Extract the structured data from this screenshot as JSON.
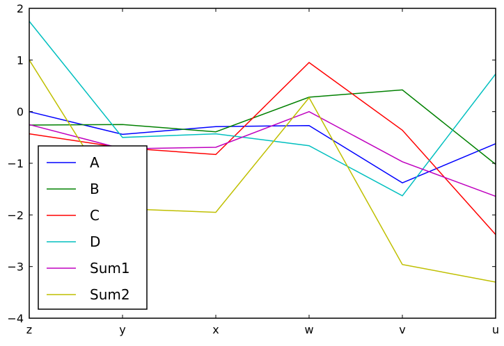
{
  "chart_data": {
    "type": "line",
    "title": "",
    "xlabel": "",
    "ylabel": "",
    "categories": [
      "z",
      "y",
      "x",
      "w",
      "v",
      "u"
    ],
    "ylim": [
      -4,
      2
    ],
    "yticks": [
      {
        "value": 2,
        "label": "2"
      },
      {
        "value": 1,
        "label": "1"
      },
      {
        "value": 0,
        "label": "0"
      },
      {
        "value": -1,
        "label": "−1"
      },
      {
        "value": -2,
        "label": "−2"
      },
      {
        "value": -3,
        "label": "−3"
      },
      {
        "value": -4,
        "label": "−4"
      }
    ],
    "grid": false,
    "legend_position": "lower-left",
    "series": [
      {
        "name": "A",
        "color": "#0000ff",
        "values": [
          0.0,
          -0.44,
          -0.29,
          -0.27,
          -1.38,
          -0.62
        ]
      },
      {
        "name": "B",
        "color": "#008000",
        "values": [
          -0.26,
          -0.25,
          -0.39,
          0.28,
          0.42,
          -1.02
        ]
      },
      {
        "name": "C",
        "color": "#ff0000",
        "values": [
          -0.43,
          -0.7,
          -0.83,
          0.95,
          -0.36,
          -2.38
        ]
      },
      {
        "name": "D",
        "color": "#00bfbf",
        "values": [
          1.75,
          -0.5,
          -0.43,
          -0.66,
          -1.63,
          0.73
        ]
      },
      {
        "name": "Sum1",
        "color": "#bf00bf",
        "values": [
          -0.25,
          -0.72,
          -0.69,
          0.0,
          -0.97,
          -1.64
        ]
      },
      {
        "name": "Sum2",
        "color": "#bfbf00",
        "values": [
          1.0,
          -1.88,
          -1.95,
          0.27,
          -2.96,
          -3.3
        ]
      }
    ]
  }
}
